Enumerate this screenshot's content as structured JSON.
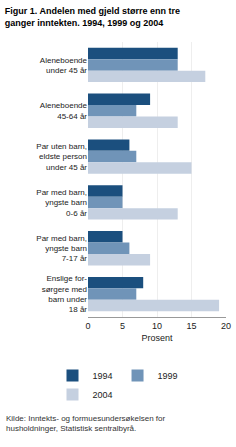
{
  "chart_data": {
    "type": "bar",
    "orientation": "horizontal",
    "title": "Figur 1. Andelen med gjeld større enn tre\nganger inntekten. 1994, 1999 og 2004",
    "categories": [
      "Aleneboende\nunder 45 år",
      "Aleneboende\n45-64 år",
      "Par uten barn,\neldste person\nunder 45 år",
      "Par med barn,\nyngste barn\n0-6 år",
      "Par med barn,\nyngste barn\n7-17 år",
      "Enslige for-\nsørgere med\nbarn under\n18 år"
    ],
    "series": [
      {
        "name": "1994",
        "color": "#1b4f7e",
        "values": [
          13.0,
          9.0,
          6.0,
          5.0,
          5.0,
          8.0
        ]
      },
      {
        "name": "1999",
        "color": "#7094b8",
        "values": [
          13.0,
          7.0,
          7.0,
          5.0,
          6.0,
          7.0
        ]
      },
      {
        "name": "2004",
        "color": "#c5d0e0",
        "values": [
          17.0,
          13.0,
          15.0,
          13.0,
          9.0,
          19.0
        ]
      }
    ],
    "x_label": "Prosent",
    "xlim": [
      0,
      20
    ],
    "xticks": [
      0,
      5,
      10,
      15,
      20
    ],
    "grid": true,
    "legend": "bottom",
    "annotations": [
      "Kilde: Inntekts- og formuesundersøkelsen for",
      "husholdninger, Statistisk sentralbyrå."
    ]
  }
}
